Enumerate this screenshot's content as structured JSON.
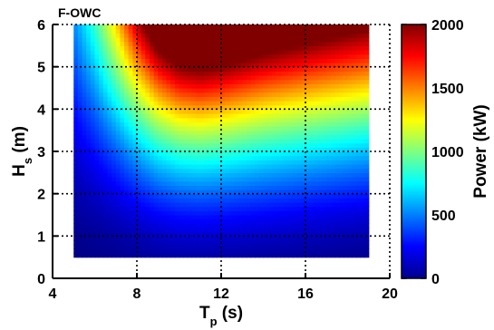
{
  "chart_data": {
    "type": "heatmap",
    "title": "F-OWC",
    "xlabel": {
      "main": "T",
      "sub": "p",
      "unit": " (s)"
    },
    "ylabel": {
      "main": "H",
      "sub": "s",
      "unit": " (m)"
    },
    "colorbar_label": "Power (kW)",
    "xlim": [
      4,
      20
    ],
    "ylim": [
      0,
      6
    ],
    "xticks": [
      4,
      8,
      12,
      16,
      20
    ],
    "yticks": [
      0,
      1,
      2,
      3,
      4,
      5,
      6
    ],
    "zlim": [
      0,
      2000
    ],
    "colorbar_ticks": [
      0,
      500,
      1000,
      1500,
      2000
    ],
    "colormap": "jet",
    "grid": "dotted",
    "x": [
      5,
      6,
      7,
      8,
      9,
      10,
      11,
      12,
      13,
      14,
      15,
      16,
      17,
      18,
      19
    ],
    "y": [
      0.5,
      1,
      1.5,
      2,
      2.5,
      3,
      3.5,
      4,
      4.5,
      5,
      5.5,
      6
    ],
    "z": [
      [
        10,
        20,
        30,
        45,
        60,
        70,
        70,
        65,
        60,
        55,
        50,
        45,
        40,
        35,
        30
      ],
      [
        25,
        45,
        70,
        100,
        135,
        160,
        165,
        160,
        150,
        140,
        130,
        120,
        110,
        100,
        90
      ],
      [
        50,
        85,
        130,
        185,
        240,
        275,
        285,
        275,
        260,
        245,
        230,
        215,
        200,
        185,
        170
      ],
      [
        80,
        135,
        210,
        300,
        385,
        435,
        450,
        435,
        415,
        395,
        375,
        355,
        335,
        315,
        295
      ],
      [
        120,
        200,
        310,
        440,
        560,
        630,
        650,
        630,
        600,
        570,
        545,
        520,
        495,
        470,
        445
      ],
      [
        165,
        275,
        425,
        600,
        760,
        855,
        880,
        855,
        815,
        775,
        745,
        715,
        685,
        655,
        625
      ],
      [
        215,
        360,
        555,
        785,
        990,
        1110,
        1140,
        1110,
        1060,
        1010,
        975,
        940,
        905,
        870,
        835
      ],
      [
        270,
        450,
        700,
        985,
        1240,
        1390,
        1430,
        1390,
        1330,
        1270,
        1225,
        1185,
        1145,
        1105,
        1065
      ],
      [
        330,
        550,
        855,
        1200,
        1510,
        1690,
        1740,
        1690,
        1620,
        1550,
        1500,
        1450,
        1405,
        1360,
        1315
      ],
      [
        390,
        650,
        1010,
        1420,
        1785,
        1995,
        2050,
        1995,
        1915,
        1835,
        1775,
        1720,
        1665,
        1615,
        1565
      ],
      [
        450,
        750,
        1165,
        1640,
        2060,
        2300,
        2360,
        2300,
        2205,
        2115,
        2045,
        1985,
        1925,
        1865,
        1810
      ],
      [
        510,
        850,
        1320,
        1860,
        2330,
        2600,
        2670,
        2600,
        2495,
        2395,
        2320,
        2250,
        2185,
        2120,
        2055
      ]
    ]
  }
}
